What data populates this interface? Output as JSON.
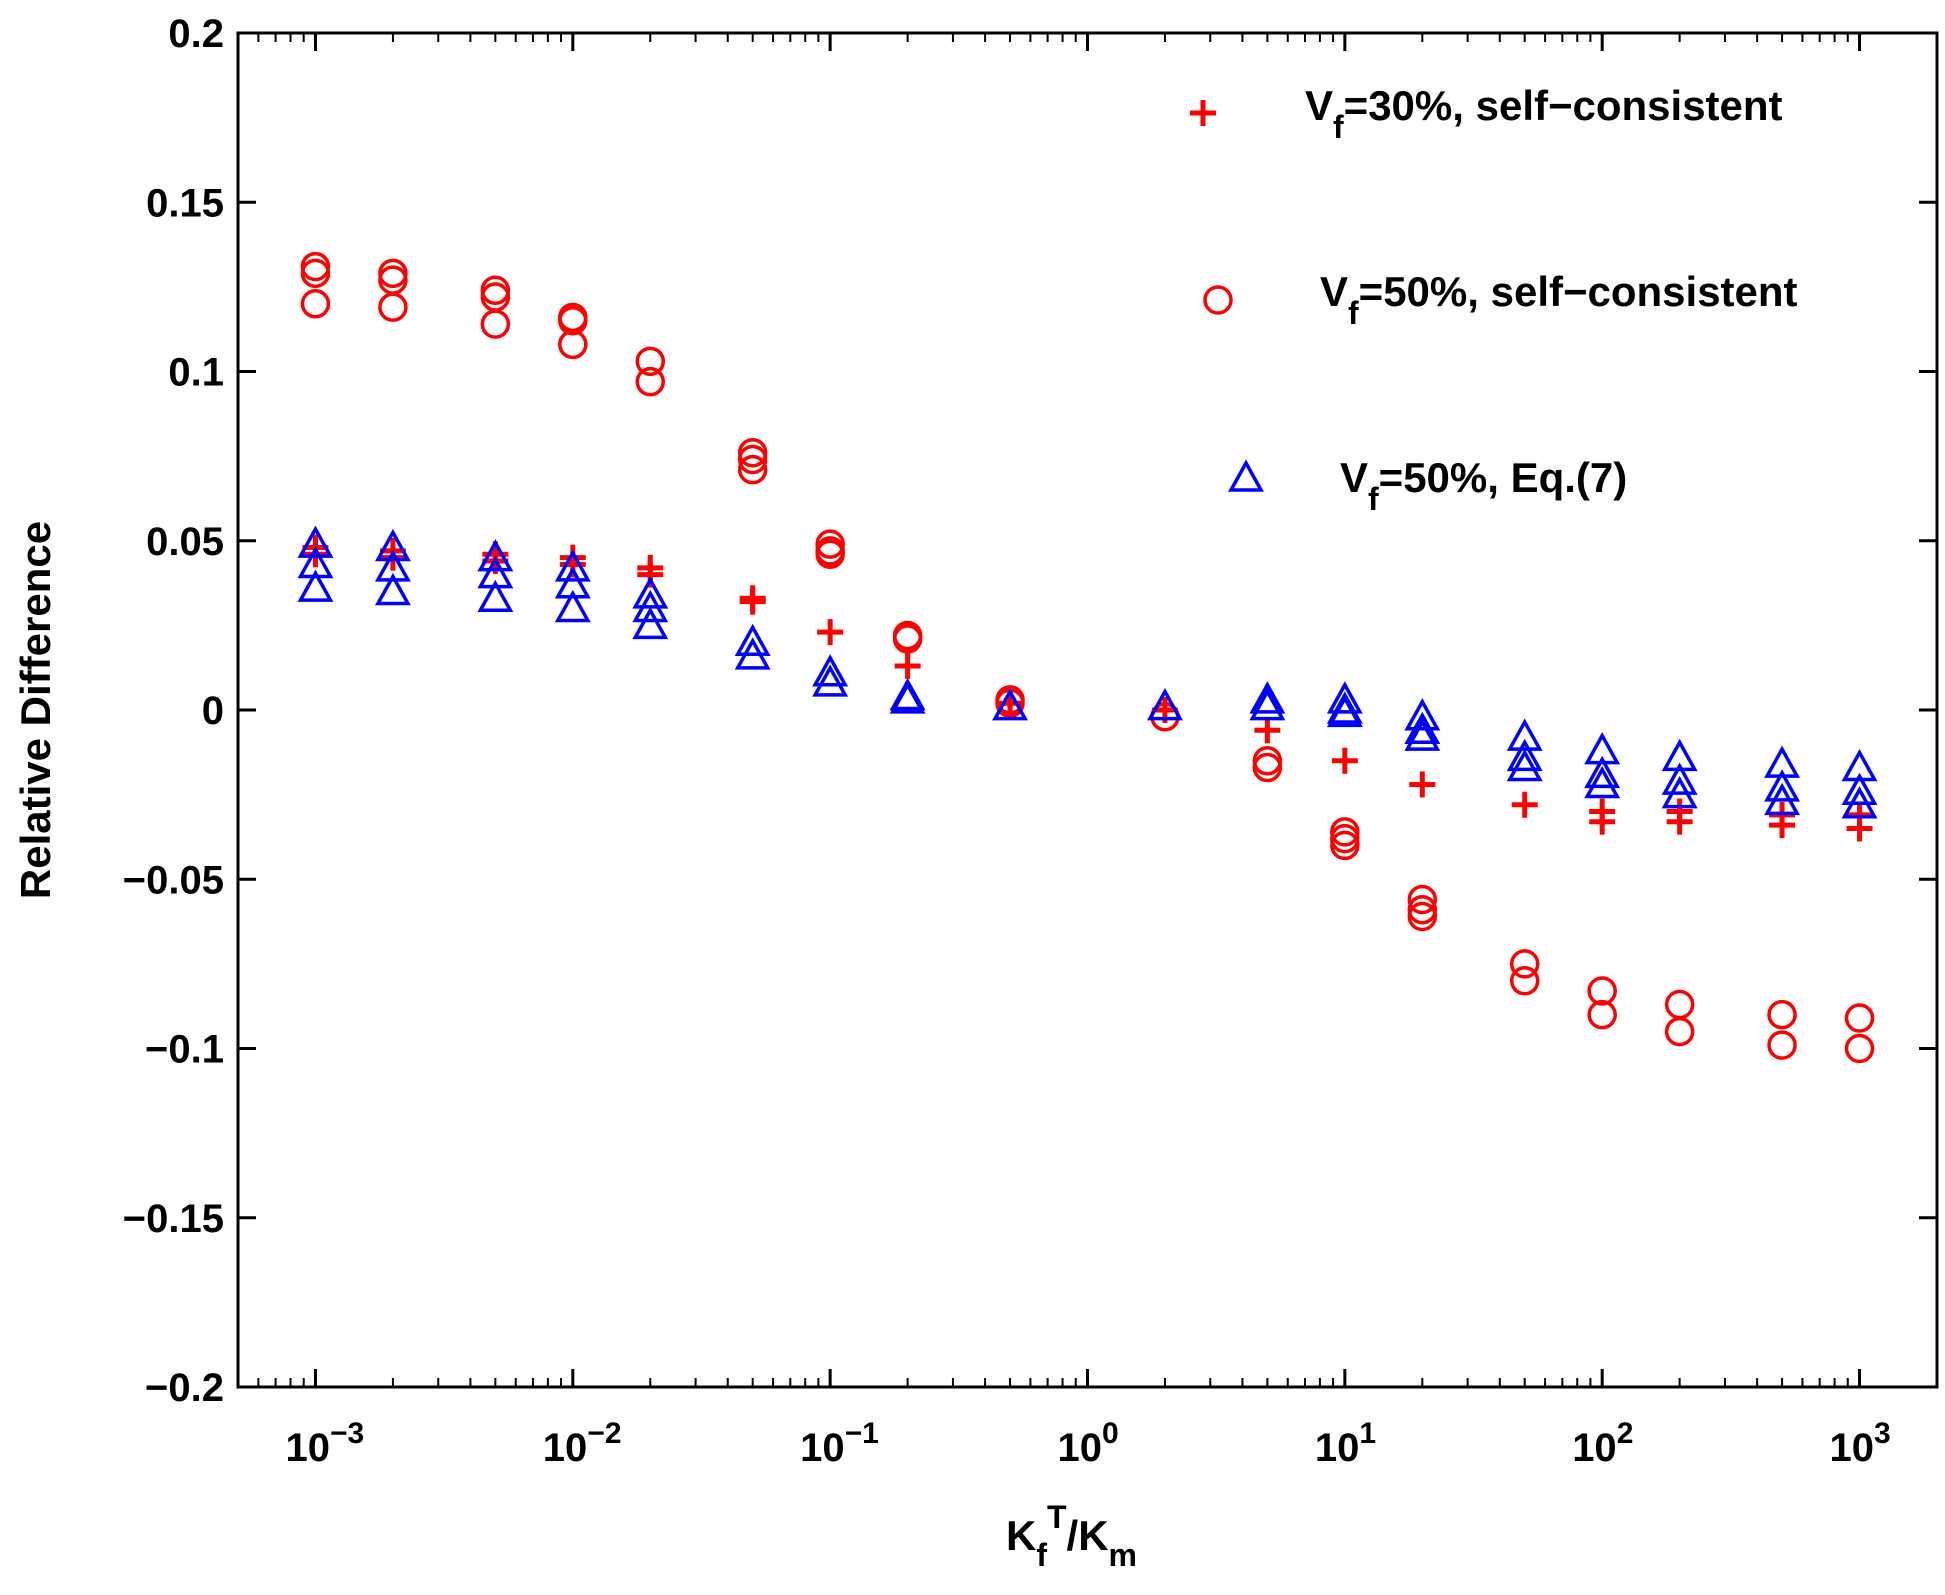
{
  "chart_data": {
    "type": "scatter",
    "xscale": "log",
    "xlim": [
      0.0005,
      2000
    ],
    "ylim": [
      -0.2,
      0.2
    ],
    "grid": false,
    "legend_position": "top-right",
    "xlabel": {
      "base": "K",
      "sub1": "f",
      "sup": "T",
      "mid": "/K",
      "sub2": "m"
    },
    "ylabel": "Relative Difference",
    "xticks": [
      {
        "value": 0.001,
        "base": "10",
        "exp": "−3"
      },
      {
        "value": 0.01,
        "base": "10",
        "exp": "−2"
      },
      {
        "value": 0.1,
        "base": "10",
        "exp": "−1"
      },
      {
        "value": 1,
        "base": "10",
        "exp": "0"
      },
      {
        "value": 10,
        "base": "10",
        "exp": "1"
      },
      {
        "value": 100,
        "base": "10",
        "exp": "2"
      },
      {
        "value": 1000,
        "base": "10",
        "exp": "3"
      }
    ],
    "yticks": [
      {
        "value": 0.2,
        "label": "0.2"
      },
      {
        "value": 0.15,
        "label": "0.15"
      },
      {
        "value": 0.1,
        "label": "0.1"
      },
      {
        "value": 0.05,
        "label": "0.05"
      },
      {
        "value": 0,
        "label": "0"
      },
      {
        "value": -0.05,
        "label": "−0.05"
      },
      {
        "value": -0.1,
        "label": "−0.1"
      },
      {
        "value": -0.15,
        "label": "−0.15"
      },
      {
        "value": -0.2,
        "label": "−0.2"
      }
    ],
    "series": [
      {
        "name": "Vf=30%, self-consistent",
        "legend": {
          "v": "V",
          "sub": "f",
          "rest": "=30%, self−consistent"
        },
        "marker": "plus",
        "color": "#ff0000",
        "points": [
          [
            0.001,
            0.048
          ],
          [
            0.001,
            0.046
          ],
          [
            0.002,
            0.047
          ],
          [
            0.002,
            0.045
          ],
          [
            0.005,
            0.046
          ],
          [
            0.005,
            0.044
          ],
          [
            0.01,
            0.045
          ],
          [
            0.01,
            0.043
          ],
          [
            0.02,
            0.042
          ],
          [
            0.02,
            0.04
          ],
          [
            0.05,
            0.033
          ],
          [
            0.05,
            0.032
          ],
          [
            0.1,
            0.023
          ],
          [
            0.2,
            0.013
          ],
          [
            0.5,
            0.002
          ],
          [
            2,
            0.0
          ],
          [
            5,
            -0.006
          ],
          [
            10,
            -0.015
          ],
          [
            20,
            -0.022
          ],
          [
            50,
            -0.028
          ],
          [
            100,
            -0.03
          ],
          [
            100,
            -0.033
          ],
          [
            200,
            -0.03
          ],
          [
            200,
            -0.033
          ],
          [
            500,
            -0.031
          ],
          [
            500,
            -0.034
          ],
          [
            1000,
            -0.031
          ],
          [
            1000,
            -0.035
          ]
        ]
      },
      {
        "name": "Vf=50%, self-consistent",
        "legend": {
          "v": "V",
          "sub": "f",
          "rest": "=50%, self−consistent"
        },
        "marker": "circle",
        "color": "#ff0000",
        "points": [
          [
            0.001,
            0.131
          ],
          [
            0.001,
            0.129
          ],
          [
            0.001,
            0.12
          ],
          [
            0.002,
            0.129
          ],
          [
            0.002,
            0.127
          ],
          [
            0.002,
            0.119
          ],
          [
            0.005,
            0.124
          ],
          [
            0.005,
            0.122
          ],
          [
            0.005,
            0.114
          ],
          [
            0.01,
            0.116
          ],
          [
            0.01,
            0.115
          ],
          [
            0.01,
            0.108
          ],
          [
            0.02,
            0.103
          ],
          [
            0.02,
            0.097
          ],
          [
            0.05,
            0.076
          ],
          [
            0.05,
            0.074
          ],
          [
            0.05,
            0.071
          ],
          [
            0.1,
            0.049
          ],
          [
            0.1,
            0.047
          ],
          [
            0.1,
            0.046
          ],
          [
            0.2,
            0.022
          ],
          [
            0.2,
            0.021
          ],
          [
            0.5,
            0.003
          ],
          [
            0.5,
            0.002
          ],
          [
            2,
            -0.002
          ],
          [
            5,
            -0.015
          ],
          [
            5,
            -0.017
          ],
          [
            10,
            -0.036
          ],
          [
            10,
            -0.038
          ],
          [
            10,
            -0.04
          ],
          [
            20,
            -0.056
          ],
          [
            20,
            -0.059
          ],
          [
            20,
            -0.061
          ],
          [
            50,
            -0.075
          ],
          [
            50,
            -0.08
          ],
          [
            100,
            -0.083
          ],
          [
            100,
            -0.09
          ],
          [
            200,
            -0.087
          ],
          [
            200,
            -0.095
          ],
          [
            500,
            -0.09
          ],
          [
            500,
            -0.099
          ],
          [
            1000,
            -0.091
          ],
          [
            1000,
            -0.1
          ]
        ]
      },
      {
        "name": "Vf=50%, Eq.(7)",
        "legend": {
          "v": "V",
          "sub": "f",
          "rest": "=50%, Eq.(7)"
        },
        "marker": "triangle",
        "color": "#0000ff",
        "points": [
          [
            0.001,
            0.049
          ],
          [
            0.001,
            0.043
          ],
          [
            0.001,
            0.036
          ],
          [
            0.002,
            0.048
          ],
          [
            0.002,
            0.042
          ],
          [
            0.002,
            0.035
          ],
          [
            0.005,
            0.045
          ],
          [
            0.005,
            0.04
          ],
          [
            0.005,
            0.033
          ],
          [
            0.01,
            0.042
          ],
          [
            0.01,
            0.037
          ],
          [
            0.01,
            0.03
          ],
          [
            0.02,
            0.034
          ],
          [
            0.02,
            0.03
          ],
          [
            0.02,
            0.025
          ],
          [
            0.05,
            0.02
          ],
          [
            0.05,
            0.016
          ],
          [
            0.1,
            0.011
          ],
          [
            0.1,
            0.008
          ],
          [
            0.2,
            0.004
          ],
          [
            0.2,
            0.003
          ],
          [
            0.5,
            0.001
          ],
          [
            2,
            0.001
          ],
          [
            5,
            0.003
          ],
          [
            5,
            0.001
          ],
          [
            10,
            0.003
          ],
          [
            10,
            0.0
          ],
          [
            10,
            -0.001
          ],
          [
            20,
            -0.002
          ],
          [
            20,
            -0.006
          ],
          [
            20,
            -0.008
          ],
          [
            50,
            -0.008
          ],
          [
            50,
            -0.014
          ],
          [
            50,
            -0.017
          ],
          [
            100,
            -0.012
          ],
          [
            100,
            -0.019
          ],
          [
            100,
            -0.022
          ],
          [
            200,
            -0.014
          ],
          [
            200,
            -0.021
          ],
          [
            200,
            -0.025
          ],
          [
            500,
            -0.016
          ],
          [
            500,
            -0.023
          ],
          [
            500,
            -0.027
          ],
          [
            1000,
            -0.017
          ],
          [
            1000,
            -0.024
          ],
          [
            1000,
            -0.028
          ]
        ]
      }
    ]
  }
}
